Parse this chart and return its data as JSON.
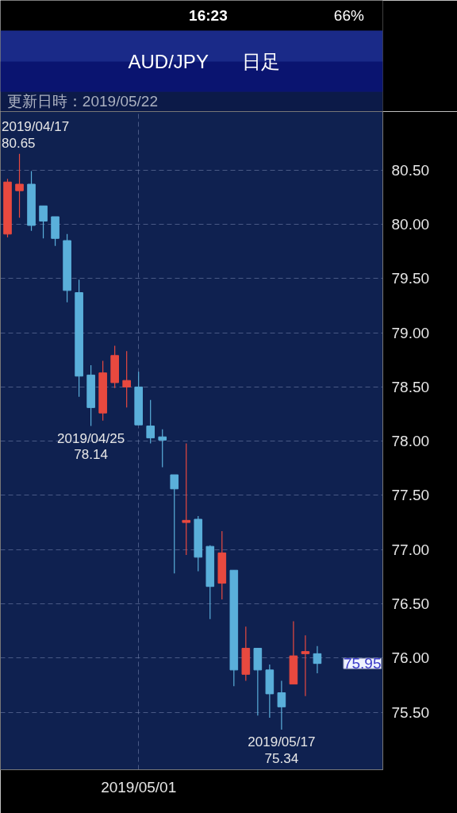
{
  "chart_data": {
    "type": "candlestick",
    "title": "AUD/JPY",
    "subtitle": "日足",
    "categories": [
      null,
      null,
      null,
      null,
      null,
      null,
      null,
      null,
      null,
      null,
      null,
      "2019/05/01",
      null,
      null,
      null,
      null,
      null,
      null,
      null,
      null,
      null,
      null,
      null,
      null,
      null,
      null,
      null
    ],
    "ohlc": [
      [
        79.91,
        80.42,
        79.88,
        80.39
      ],
      [
        80.31,
        80.65,
        80.06,
        80.37
      ],
      [
        80.37,
        80.49,
        79.94,
        79.99
      ],
      [
        80.17,
        80.17,
        79.87,
        80.03
      ],
      [
        80.07,
        80.07,
        79.8,
        79.87
      ],
      [
        79.85,
        79.91,
        79.28,
        79.39
      ],
      [
        79.37,
        79.49,
        78.41,
        78.6
      ],
      [
        78.61,
        78.7,
        78.14,
        78.31
      ],
      [
        78.26,
        78.74,
        78.19,
        78.63
      ],
      [
        78.54,
        78.88,
        78.49,
        78.79
      ],
      [
        78.5,
        78.83,
        78.31,
        78.56
      ],
      [
        78.5,
        78.64,
        78.15,
        78.15
      ],
      [
        78.14,
        78.38,
        77.98,
        78.03
      ],
      [
        78.04,
        78.11,
        77.76,
        78.01
      ],
      [
        77.69,
        77.69,
        76.78,
        77.56
      ],
      [
        77.25,
        77.98,
        76.95,
        77.27
      ],
      [
        77.28,
        77.31,
        76.8,
        76.93
      ],
      [
        77.03,
        77.04,
        76.36,
        76.66
      ],
      [
        76.69,
        77.17,
        76.54,
        76.97
      ],
      [
        76.81,
        76.81,
        75.74,
        75.89
      ],
      [
        75.85,
        76.29,
        75.79,
        76.09
      ],
      [
        76.09,
        76.09,
        75.47,
        75.89
      ],
      [
        75.89,
        75.94,
        75.45,
        75.67
      ],
      [
        75.68,
        75.79,
        75.34,
        75.55
      ],
      [
        75.76,
        76.34,
        75.76,
        76.02
      ],
      [
        76.04,
        76.21,
        75.65,
        76.06
      ],
      [
        76.04,
        76.11,
        75.86,
        75.95
      ]
    ],
    "colors": [
      "#e8493f",
      "#e8493f",
      "#5aafda",
      "#5aafda",
      "#5aafda",
      "#5aafda",
      "#5aafda",
      "#5aafda",
      "#e8493f",
      "#e8493f",
      "#e8493f",
      "#5aafda",
      "#5aafda",
      "#5aafda",
      "#5aafda",
      "#e8493f",
      "#5aafda",
      "#5aafda",
      "#e8493f",
      "#5aafda",
      "#e8493f",
      "#5aafda",
      "#5aafda",
      "#5aafda",
      "#e8493f",
      "#e8493f",
      "#5aafda"
    ],
    "ylim": [
      74.97,
      81.04
    ],
    "yticks": [
      {
        "value": 75.5,
        "label": "75.50"
      },
      {
        "value": 76.0,
        "label": "76.00"
      },
      {
        "value": 76.5,
        "label": "76.50"
      },
      {
        "value": 77.0,
        "label": "77.00"
      },
      {
        "value": 77.5,
        "label": "77.50"
      },
      {
        "value": 78.0,
        "label": "78.00"
      },
      {
        "value": 78.5,
        "label": "78.50"
      },
      {
        "value": 79.0,
        "label": "79.00"
      },
      {
        "value": 79.5,
        "label": "79.50"
      },
      {
        "value": 80.0,
        "label": "80.00"
      },
      {
        "value": 80.5,
        "label": "80.50"
      }
    ],
    "grid": true,
    "annotations": [
      "16:23",
      "66%",
      "更新日時：2019/05/22",
      "2019/04/17\n80.65",
      {
        "text": "2019/04/25\n78.14",
        "y": 78.14
      },
      {
        "text": "2019/05/17\n75.34",
        "y": 75.34
      },
      "75.95"
    ]
  }
}
